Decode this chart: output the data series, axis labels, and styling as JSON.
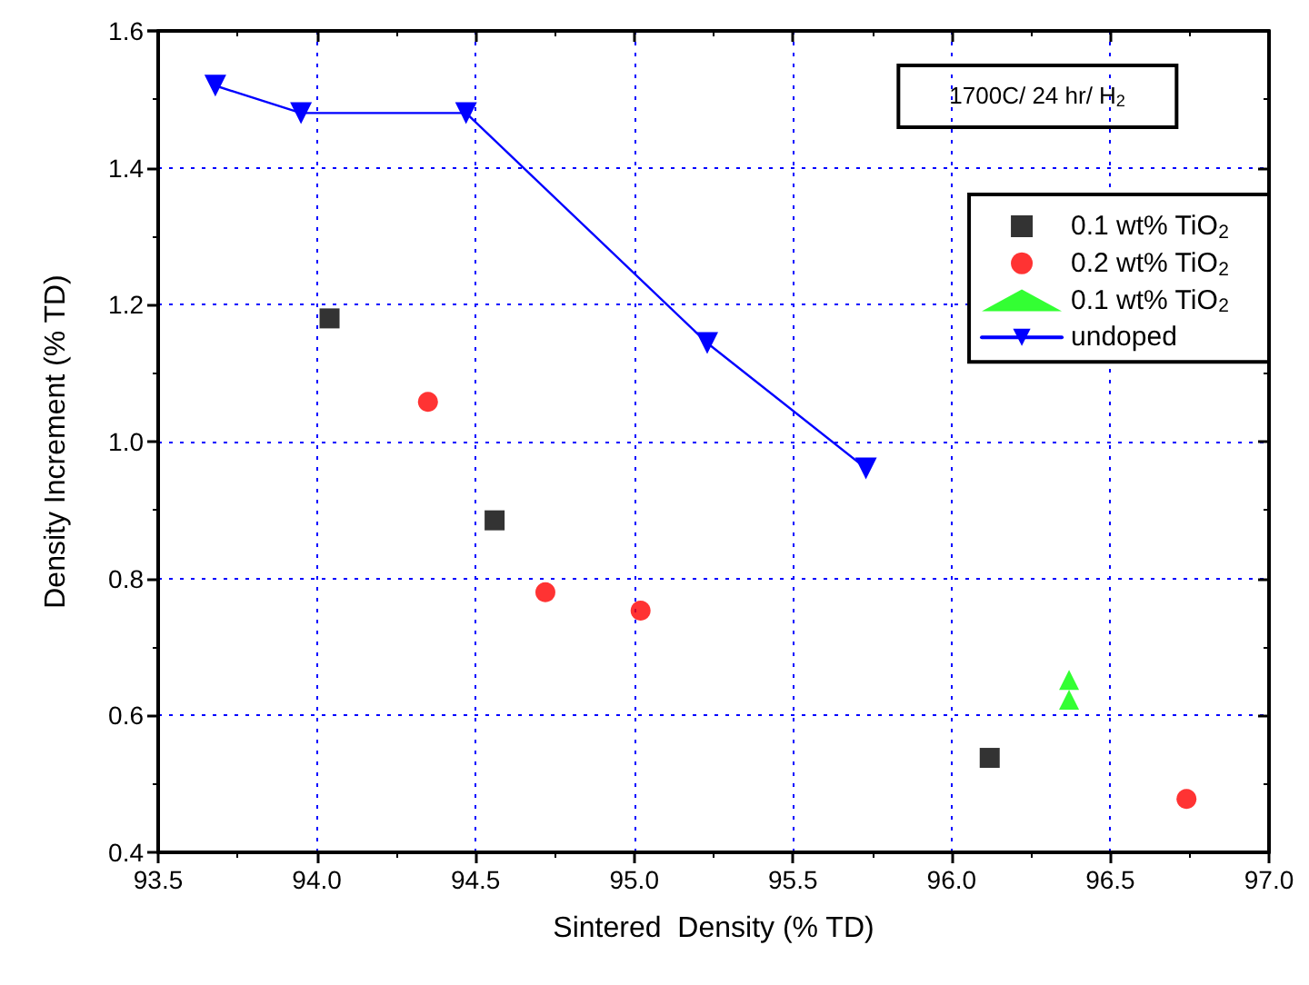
{
  "chart_data": {
    "type": "scatter",
    "xlabel": "Sintered  Density (% TD)",
    "ylabel": "Density Increment (% TD)",
    "annotations": [
      "1700C/ 24 hr/ H$_{2}$"
    ],
    "xlim": [
      93.5,
      97.0
    ],
    "xticks": [
      {
        "value": 93.5,
        "label": "93.5"
      },
      {
        "value": 94,
        "label": "94.0"
      },
      {
        "value": 94.5,
        "label": "94.5"
      },
      {
        "value": 95,
        "label": "95.0"
      },
      {
        "value": 95.5,
        "label": "95.5"
      },
      {
        "value": 96,
        "label": "96.0"
      },
      {
        "value": 96.5,
        "label": "96.5"
      },
      {
        "value": 97,
        "label": "97.0"
      }
    ],
    "ylim": [
      0.4,
      1.6
    ],
    "yticks": [
      {
        "value": 0.4,
        "label": "0.4"
      },
      {
        "value": 0.6,
        "label": "0.6"
      },
      {
        "value": 0.8,
        "label": "0.8"
      },
      {
        "value": 1,
        "label": "1.0"
      },
      {
        "value": 1.2,
        "label": "1.2"
      },
      {
        "value": 1.4,
        "label": "1.4"
      },
      {
        "value": 1.6,
        "label": "1.6"
      }
    ],
    "grid": true,
    "legend": "top right",
    "series": [
      {
        "name": "0.1 wt% TiO$_{2}$",
        "marker": "square",
        "color": "#000000",
        "x": [
          94.04,
          94.56,
          96.12
        ],
        "values": [
          1.18,
          0.885,
          0.538
        ]
      },
      {
        "name": "0.2 wt% TiO$_{2}$",
        "marker": "circle",
        "color": "#ff0000",
        "x": [
          94.35,
          94.72,
          95.02,
          96.74
        ],
        "values": [
          1.058,
          0.78,
          0.753,
          0.478
        ]
      },
      {
        "name": "0.1 wt% TiO$_{2}$",
        "marker": "triangle",
        "color": "#00ff00",
        "x": [
          96.37,
          96.37
        ],
        "values": [
          0.652,
          0.623
        ]
      },
      {
        "name": "undoped",
        "type": "line",
        "marker": "triangle-down",
        "line_style": "solid",
        "color": "#0000ff",
        "x": [
          93.68,
          93.95,
          94.47,
          95.23,
          95.73
        ],
        "values": [
          1.52,
          1.48,
          1.48,
          1.144,
          0.961
        ]
      }
    ]
  }
}
